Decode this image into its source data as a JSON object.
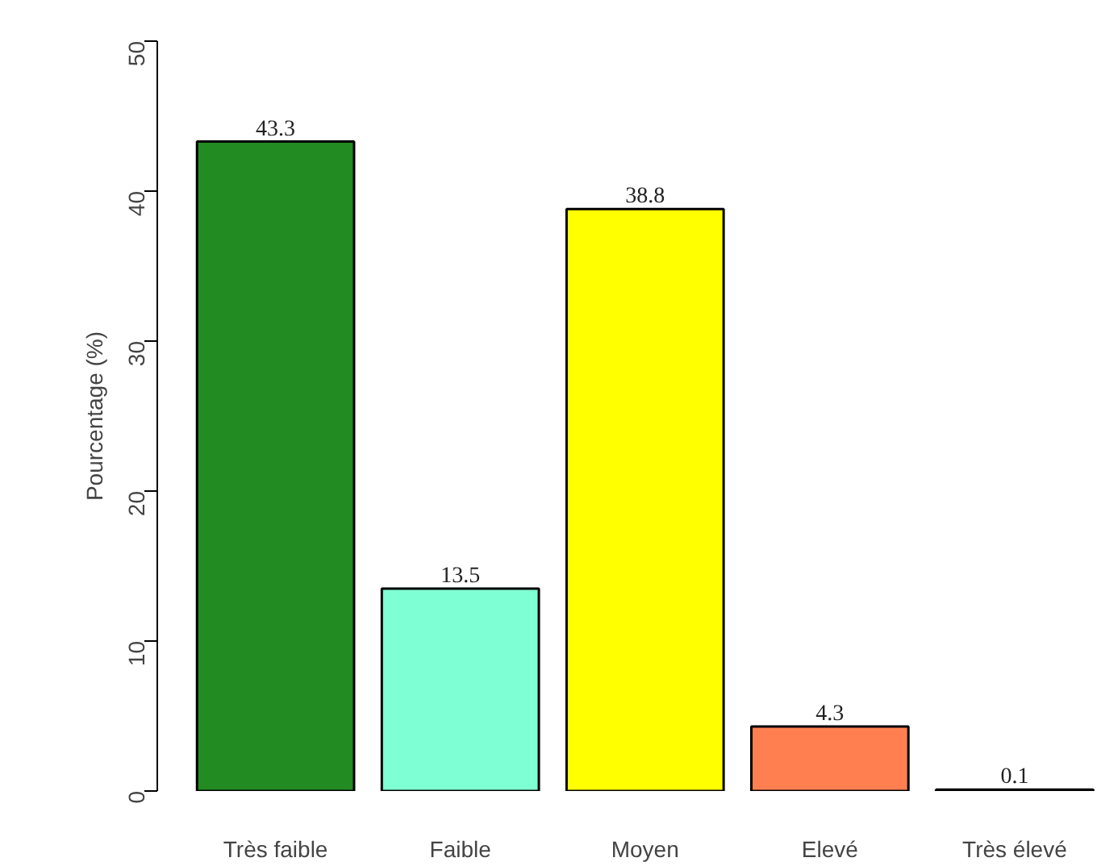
{
  "chart_data": {
    "type": "bar",
    "ylabel": "Pourcentage (%)",
    "categories": [
      "Très faible",
      "Faible",
      "Moyen",
      "Elevé",
      "Très élevé"
    ],
    "values": [
      43.3,
      13.5,
      38.8,
      4.3,
      0.1
    ],
    "colors": [
      "#228b22",
      "#7fffd4",
      "#ffff00",
      "#ff7f50",
      "#000000"
    ],
    "ylim": [
      0,
      50
    ],
    "yticks": [
      0,
      10,
      20,
      30,
      40,
      50
    ],
    "grid": false,
    "data_labels": true
  }
}
